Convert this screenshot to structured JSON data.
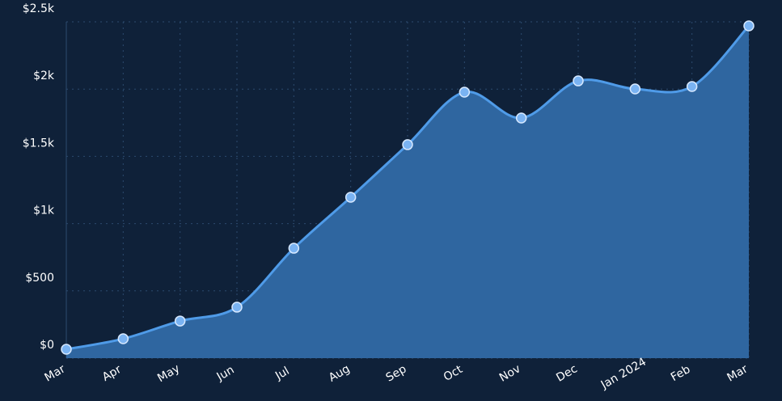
{
  "chart_data": {
    "type": "area",
    "categories": [
      "Mar",
      "Apr",
      "May",
      "Jun",
      "Jul",
      "Aug",
      "Sep",
      "Oct",
      "Nov",
      "Dec",
      "Jan 2024",
      "Feb",
      "Mar"
    ],
    "values": [
      66,
      144,
      276,
      379,
      817,
      1196,
      1587,
      1977,
      1785,
      2061,
      2001,
      2019,
      2470
    ],
    "color": "#4f9be8",
    "fill_color": "#2f66a0",
    "ylim": [
      0,
      2500
    ],
    "yticks": [
      {
        "value": 0,
        "label": "$0"
      },
      {
        "value": 500,
        "label": "$500"
      },
      {
        "value": 1000,
        "label": "$1k"
      },
      {
        "value": 1500,
        "label": "$1.5k"
      },
      {
        "value": 2000,
        "label": "$2k"
      },
      {
        "value": 2500,
        "label": "$2.5k"
      }
    ],
    "grid": true
  }
}
